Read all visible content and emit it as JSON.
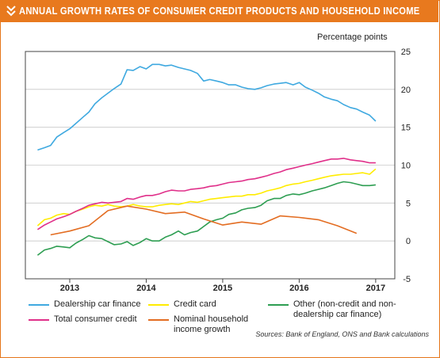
{
  "header": {
    "title": "ANNUAL GROWTH RATES OF CONSUMER CREDIT PRODUCTS AND HOUSEHOLD INCOME"
  },
  "chart_data": {
    "type": "line",
    "title": "ANNUAL GROWTH RATES OF CONSUMER CREDIT PRODUCTS AND HOUSEHOLD INCOME",
    "ylabel": "Percentage points",
    "ylim": [
      -5,
      25
    ],
    "yticks": [
      25,
      20,
      15,
      10,
      5,
      0,
      -5
    ],
    "xlim": [
      2012.42,
      2017.25
    ],
    "xticks": [
      {
        "label": "2013",
        "value": 2013
      },
      {
        "label": "2014",
        "value": 2014
      },
      {
        "label": "2015",
        "value": 2015
      },
      {
        "label": "2016",
        "value": 2016
      },
      {
        "label": "2017",
        "value": 2017
      }
    ],
    "grid": true,
    "legend_position": "bottom",
    "source": "Sources: Bank of England, ONS and Bank calculations",
    "series": [
      {
        "name": "Dealership car finance",
        "color": "#3fa9e0",
        "x": [
          2012.58,
          2012.67,
          2012.75,
          2012.83,
          2012.92,
          2013.0,
          2013.08,
          2013.17,
          2013.25,
          2013.33,
          2013.42,
          2013.5,
          2013.58,
          2013.67,
          2013.75,
          2013.83,
          2013.92,
          2014.0,
          2014.08,
          2014.17,
          2014.25,
          2014.33,
          2014.42,
          2014.5,
          2014.58,
          2014.67,
          2014.75,
          2014.83,
          2014.92,
          2015.0,
          2015.08,
          2015.17,
          2015.25,
          2015.33,
          2015.42,
          2015.5,
          2015.58,
          2015.67,
          2015.75,
          2015.83,
          2015.92,
          2016.0,
          2016.08,
          2016.17,
          2016.25,
          2016.33,
          2016.42,
          2016.5,
          2016.58,
          2016.67,
          2016.75,
          2016.83,
          2016.92,
          2017.0
        ],
        "values": [
          12.0,
          12.3,
          12.6,
          13.7,
          14.3,
          14.8,
          15.5,
          16.3,
          17.0,
          18.1,
          18.9,
          19.5,
          20.1,
          20.7,
          22.6,
          22.5,
          23.0,
          22.7,
          23.3,
          23.3,
          23.1,
          23.2,
          22.9,
          22.7,
          22.5,
          22.1,
          21.1,
          21.3,
          21.1,
          20.9,
          20.6,
          20.6,
          20.3,
          20.1,
          20.0,
          20.2,
          20.5,
          20.7,
          20.8,
          20.9,
          20.6,
          20.9,
          20.3,
          19.9,
          19.5,
          19.0,
          18.7,
          18.5,
          18.0,
          17.6,
          17.4,
          17.0,
          16.6,
          15.8
        ]
      },
      {
        "name": "Credit card",
        "color": "#ffec00",
        "x": [
          2012.58,
          2012.67,
          2012.75,
          2012.83,
          2012.92,
          2013.0,
          2013.08,
          2013.17,
          2013.25,
          2013.33,
          2013.42,
          2013.5,
          2013.58,
          2013.67,
          2013.75,
          2013.83,
          2013.92,
          2014.0,
          2014.08,
          2014.17,
          2014.25,
          2014.33,
          2014.42,
          2014.5,
          2014.58,
          2014.67,
          2014.75,
          2014.83,
          2014.92,
          2015.0,
          2015.08,
          2015.17,
          2015.25,
          2015.33,
          2015.42,
          2015.5,
          2015.58,
          2015.67,
          2015.75,
          2015.83,
          2015.92,
          2016.0,
          2016.08,
          2016.17,
          2016.25,
          2016.33,
          2016.42,
          2016.5,
          2016.58,
          2016.67,
          2016.75,
          2016.83,
          2016.92,
          2017.0
        ],
        "values": [
          2.0,
          2.8,
          3.0,
          3.4,
          3.6,
          3.5,
          3.9,
          4.2,
          4.5,
          4.7,
          4.6,
          4.8,
          4.6,
          4.5,
          4.6,
          4.8,
          4.6,
          4.5,
          4.5,
          4.7,
          4.8,
          4.9,
          4.8,
          5.0,
          5.2,
          5.1,
          5.3,
          5.5,
          5.6,
          5.7,
          5.8,
          5.9,
          5.9,
          6.1,
          6.1,
          6.3,
          6.6,
          6.8,
          7.0,
          7.3,
          7.5,
          7.6,
          7.8,
          8.0,
          8.2,
          8.4,
          8.6,
          8.7,
          8.8,
          8.8,
          8.9,
          9.0,
          8.8,
          9.5
        ]
      },
      {
        "name": "Other (non-credit and non-dealership car finance)",
        "color": "#2e9e52",
        "x": [
          2012.58,
          2012.67,
          2012.75,
          2012.83,
          2012.92,
          2013.0,
          2013.08,
          2013.17,
          2013.25,
          2013.33,
          2013.42,
          2013.5,
          2013.58,
          2013.67,
          2013.75,
          2013.83,
          2013.92,
          2014.0,
          2014.08,
          2014.17,
          2014.25,
          2014.33,
          2014.42,
          2014.5,
          2014.58,
          2014.67,
          2014.75,
          2014.83,
          2014.92,
          2015.0,
          2015.08,
          2015.17,
          2015.25,
          2015.33,
          2015.42,
          2015.5,
          2015.58,
          2015.67,
          2015.75,
          2015.83,
          2015.92,
          2016.0,
          2016.08,
          2016.17,
          2016.25,
          2016.33,
          2016.42,
          2016.5,
          2016.58,
          2016.67,
          2016.75,
          2016.83,
          2016.92,
          2017.0
        ],
        "values": [
          -1.9,
          -1.2,
          -1.0,
          -0.7,
          -0.8,
          -0.9,
          -0.3,
          0.2,
          0.7,
          0.4,
          0.3,
          -0.1,
          -0.5,
          -0.4,
          -0.1,
          -0.6,
          -0.2,
          0.3,
          0.0,
          0.0,
          0.5,
          0.8,
          1.3,
          0.8,
          1.1,
          1.3,
          1.9,
          2.5,
          2.8,
          3.0,
          3.5,
          3.7,
          4.1,
          4.3,
          4.4,
          4.7,
          5.3,
          5.6,
          5.6,
          6.0,
          6.2,
          6.1,
          6.3,
          6.6,
          6.8,
          7.0,
          7.3,
          7.6,
          7.8,
          7.7,
          7.5,
          7.3,
          7.3,
          7.4
        ]
      },
      {
        "name": "Total consumer credit",
        "color": "#e0308a",
        "x": [
          2012.58,
          2012.67,
          2012.75,
          2012.83,
          2012.92,
          2013.0,
          2013.08,
          2013.17,
          2013.25,
          2013.33,
          2013.42,
          2013.5,
          2013.58,
          2013.67,
          2013.75,
          2013.83,
          2013.92,
          2014.0,
          2014.08,
          2014.17,
          2014.25,
          2014.33,
          2014.42,
          2014.5,
          2014.58,
          2014.67,
          2014.75,
          2014.83,
          2014.92,
          2015.0,
          2015.08,
          2015.17,
          2015.25,
          2015.33,
          2015.42,
          2015.5,
          2015.58,
          2015.67,
          2015.75,
          2015.83,
          2015.92,
          2016.0,
          2016.08,
          2016.17,
          2016.25,
          2016.33,
          2016.42,
          2016.5,
          2016.58,
          2016.67,
          2016.75,
          2016.83,
          2016.92,
          2017.0
        ],
        "values": [
          1.5,
          2.1,
          2.5,
          2.9,
          3.2,
          3.5,
          3.9,
          4.3,
          4.7,
          4.9,
          5.1,
          5.0,
          5.1,
          5.2,
          5.6,
          5.5,
          5.8,
          6.0,
          6.0,
          6.2,
          6.5,
          6.7,
          6.6,
          6.6,
          6.8,
          6.9,
          7.0,
          7.2,
          7.3,
          7.5,
          7.7,
          7.8,
          7.9,
          8.1,
          8.2,
          8.4,
          8.6,
          8.9,
          9.1,
          9.4,
          9.6,
          9.8,
          10.0,
          10.2,
          10.4,
          10.6,
          10.8,
          10.8,
          10.9,
          10.7,
          10.6,
          10.5,
          10.3,
          10.3
        ]
      },
      {
        "name": "Nominal household income growth",
        "color": "#e36d22",
        "x": [
          2012.75,
          2013.0,
          2013.25,
          2013.5,
          2013.75,
          2014.0,
          2014.25,
          2014.5,
          2014.75,
          2015.0,
          2015.25,
          2015.5,
          2015.75,
          2016.0,
          2016.25,
          2016.5,
          2016.75
        ],
        "values": [
          0.8,
          1.3,
          2.0,
          4.0,
          4.6,
          4.2,
          3.6,
          3.8,
          2.9,
          2.1,
          2.5,
          2.2,
          3.3,
          3.1,
          2.8,
          2.0,
          1.0
        ]
      }
    ]
  }
}
